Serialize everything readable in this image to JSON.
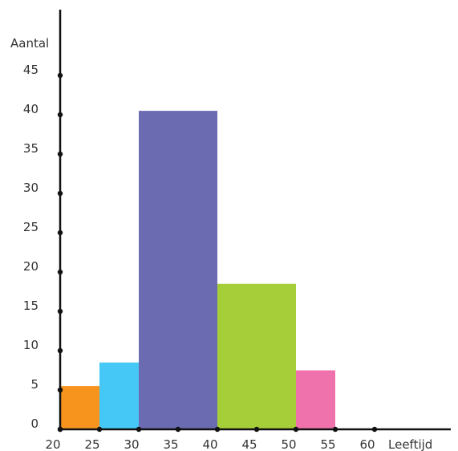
{
  "chart_data": {
    "type": "bar",
    "title": "",
    "xlabel": "Leeftijd",
    "ylabel": "Aantal",
    "xlim": [
      20,
      60
    ],
    "ylim": [
      0,
      45
    ],
    "x_ticks": [
      20,
      25,
      30,
      35,
      40,
      45,
      50,
      55,
      60
    ],
    "y_ticks": [
      0,
      5,
      10,
      15,
      20,
      25,
      30,
      35,
      40,
      45
    ],
    "grid": false,
    "bins": [
      {
        "from": 20,
        "to": 25,
        "value": 5.5,
        "color": "#f7941d"
      },
      {
        "from": 25,
        "to": 30,
        "value": 8.5,
        "color": "#45c8f5"
      },
      {
        "from": 30,
        "to": 40,
        "value": 40.5,
        "color": "#6b6bb2"
      },
      {
        "from": 40,
        "to": 50,
        "value": 18.5,
        "color": "#a6ce39"
      },
      {
        "from": 50,
        "to": 55,
        "value": 7.5,
        "color": "#f072ac"
      }
    ]
  }
}
